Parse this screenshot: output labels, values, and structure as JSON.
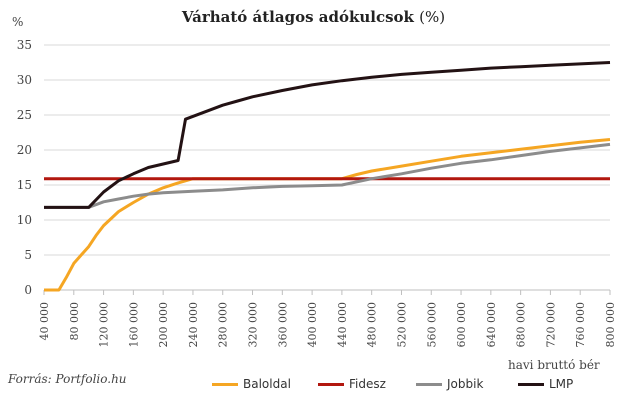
{
  "chart_data": {
    "type": "line",
    "title": "Várható átlagos adókulcsok",
    "title_unit": "(%)",
    "ylabel": "%",
    "xlabel": "havi bruttó bér",
    "source": "Forrás: Portfolio.hu",
    "ylim": [
      0,
      35
    ],
    "yticks": [
      0,
      5,
      10,
      15,
      20,
      25,
      30,
      35
    ],
    "xlim": [
      40000,
      800000
    ],
    "xticks": [
      40000,
      80000,
      120000,
      160000,
      200000,
      240000,
      280000,
      320000,
      360000,
      400000,
      440000,
      480000,
      520000,
      560000,
      600000,
      640000,
      680000,
      720000,
      760000,
      800000
    ],
    "xtick_labels": [
      "40 000",
      "80 000",
      "120 000",
      "160 000",
      "200 000",
      "240 000",
      "280 000",
      "320 000",
      "360 000",
      "400 000",
      "440 000",
      "480 000",
      "520 000",
      "560 000",
      "600 000",
      "640 000",
      "680 000",
      "720 000",
      "760 000",
      "800 000"
    ],
    "grid": true,
    "legend_position": "bottom",
    "series": [
      {
        "name": "Baloldal",
        "color": "#F5A623",
        "points": [
          [
            40000,
            0
          ],
          [
            50000,
            0
          ],
          [
            60000,
            0
          ],
          [
            70000,
            1.8
          ],
          [
            80000,
            3.8
          ],
          [
            90000,
            5
          ],
          [
            100000,
            6.2
          ],
          [
            110000,
            7.8
          ],
          [
            120000,
            9.2
          ],
          [
            140000,
            11.2
          ],
          [
            160000,
            12.5
          ],
          [
            180000,
            13.7
          ],
          [
            200000,
            14.6
          ],
          [
            220000,
            15.3
          ],
          [
            240000,
            15.9
          ],
          [
            260000,
            15.9
          ],
          [
            400000,
            15.9
          ],
          [
            440000,
            15.9
          ],
          [
            460000,
            16.5
          ],
          [
            480000,
            17
          ],
          [
            520000,
            17.7
          ],
          [
            560000,
            18.4
          ],
          [
            600000,
            19.1
          ],
          [
            640000,
            19.6
          ],
          [
            680000,
            20.1
          ],
          [
            720000,
            20.6
          ],
          [
            760000,
            21.1
          ],
          [
            800000,
            21.5
          ]
        ]
      },
      {
        "name": "Fidesz",
        "color": "#B2170F",
        "points": [
          [
            40000,
            15.9
          ],
          [
            800000,
            15.9
          ]
        ]
      },
      {
        "name": "Jobbik",
        "color": "#8C8C8C",
        "points": [
          [
            40000,
            11.8
          ],
          [
            100000,
            11.8
          ],
          [
            120000,
            12.6
          ],
          [
            140000,
            13.0
          ],
          [
            160000,
            13.4
          ],
          [
            180000,
            13.7
          ],
          [
            200000,
            13.9
          ],
          [
            240000,
            14.1
          ],
          [
            280000,
            14.3
          ],
          [
            320000,
            14.6
          ],
          [
            360000,
            14.8
          ],
          [
            400000,
            14.9
          ],
          [
            440000,
            15.0
          ],
          [
            480000,
            15.9
          ],
          [
            520000,
            16.6
          ],
          [
            560000,
            17.4
          ],
          [
            600000,
            18.1
          ],
          [
            640000,
            18.6
          ],
          [
            680000,
            19.2
          ],
          [
            720000,
            19.8
          ],
          [
            760000,
            20.3
          ],
          [
            800000,
            20.8
          ]
        ]
      },
      {
        "name": "LMP",
        "color": "#231214",
        "points": [
          [
            40000,
            11.8
          ],
          [
            100000,
            11.8
          ],
          [
            120000,
            14.0
          ],
          [
            140000,
            15.6
          ],
          [
            160000,
            16.6
          ],
          [
            180000,
            17.5
          ],
          [
            200000,
            18.0
          ],
          [
            220000,
            18.5
          ],
          [
            230000,
            24.4
          ],
          [
            260000,
            25.6
          ],
          [
            280000,
            26.4
          ],
          [
            300000,
            27.0
          ],
          [
            320000,
            27.6
          ],
          [
            360000,
            28.5
          ],
          [
            400000,
            29.3
          ],
          [
            440000,
            29.9
          ],
          [
            480000,
            30.4
          ],
          [
            520000,
            30.8
          ],
          [
            560000,
            31.1
          ],
          [
            600000,
            31.4
          ],
          [
            640000,
            31.7
          ],
          [
            680000,
            31.9
          ],
          [
            720000,
            32.1
          ],
          [
            760000,
            32.3
          ],
          [
            800000,
            32.5
          ]
        ]
      }
    ]
  }
}
